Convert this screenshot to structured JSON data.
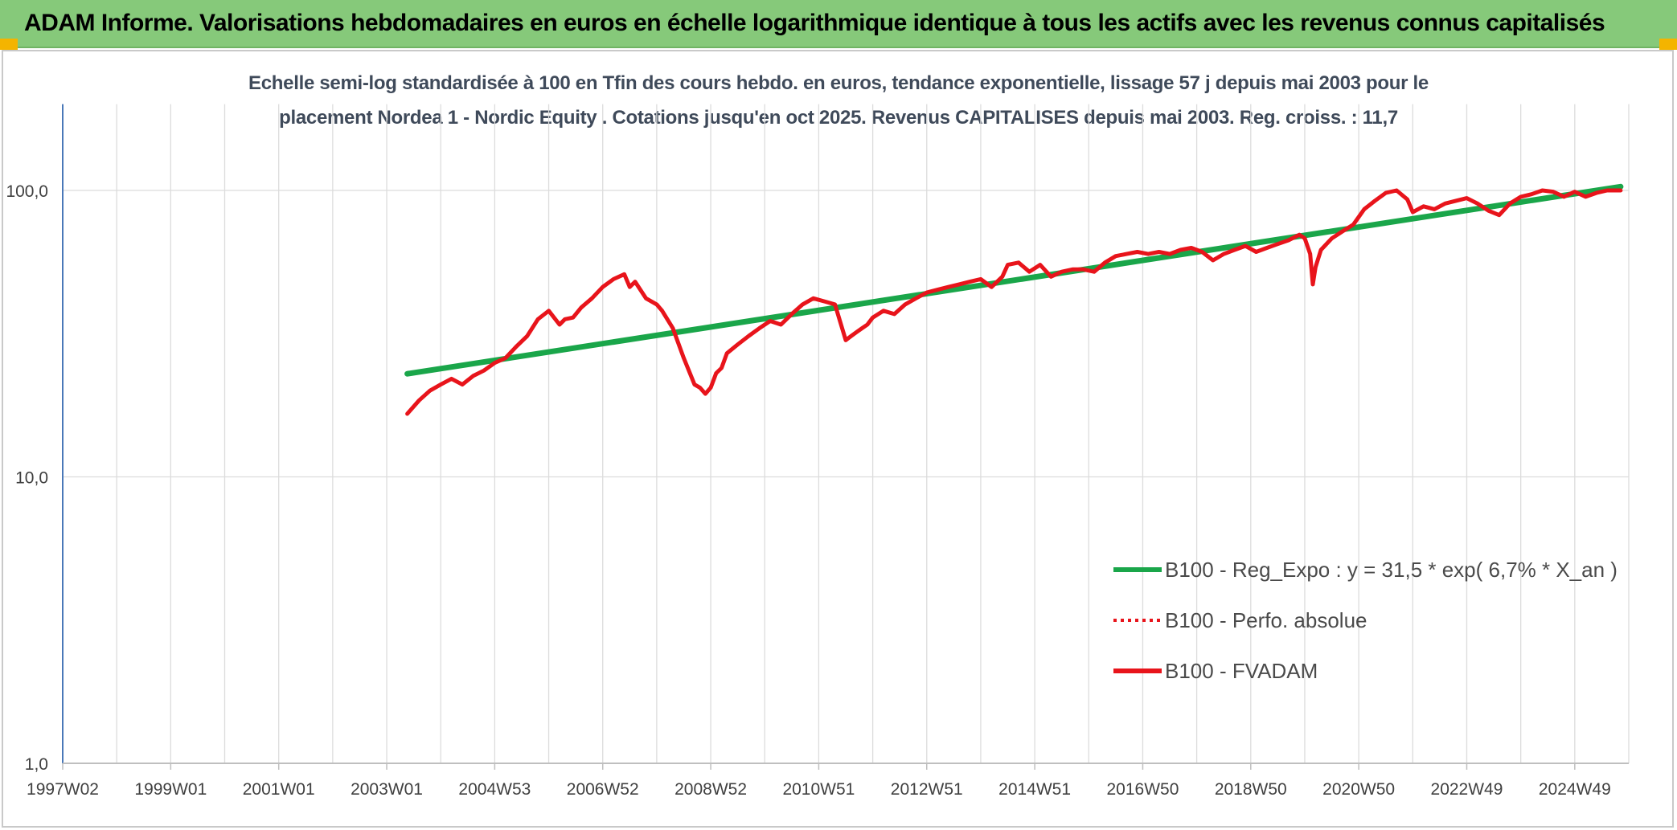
{
  "banner": {
    "title": "ADAM Informe. Valorisations hebdomadaires en euros en échelle logarithmique identique à tous les actifs avec les revenus connus capitalisés"
  },
  "chart_data": {
    "type": "line",
    "subtitle_lines": [
      "Echelle semi-log standardisée à 100 en Tfin des cours hebdo. en euros, tendance exponentielle, lissage 57 j depuis mai 2003 pour le",
      "placement Nordea 1 - Nordic Equity . Cotations jusqu'en oct 2025. Revenus CAPITALISES depuis mai 2003. Reg. croiss. : 11,7"
    ],
    "y_scale": "log",
    "ylim": [
      1,
      200
    ],
    "y_ticks": [
      {
        "value": 1,
        "label": "1,0"
      },
      {
        "value": 10,
        "label": "10,0"
      },
      {
        "value": 100,
        "label": "100,0"
      }
    ],
    "xlim": [
      1997.0,
      2026.0
    ],
    "x_ticks": [
      {
        "value": 1997.0,
        "label": "1997W02"
      },
      {
        "value": 1999.0,
        "label": "1999W01"
      },
      {
        "value": 2001.0,
        "label": "2001W01"
      },
      {
        "value": 2003.0,
        "label": "2003W01"
      },
      {
        "value": 2005.0,
        "label": "2004W53"
      },
      {
        "value": 2007.0,
        "label": "2006W52"
      },
      {
        "value": 2009.0,
        "label": "2008W52"
      },
      {
        "value": 2011.0,
        "label": "2010W51"
      },
      {
        "value": 2013.0,
        "label": "2012W51"
      },
      {
        "value": 2015.0,
        "label": "2014W51"
      },
      {
        "value": 2017.0,
        "label": "2016W50"
      },
      {
        "value": 2019.0,
        "label": "2018W50"
      },
      {
        "value": 2021.0,
        "label": "2020W50"
      },
      {
        "value": 2023.0,
        "label": "2022W49"
      },
      {
        "value": 2025.0,
        "label": "2024W49"
      }
    ],
    "grid": {
      "vertical": true,
      "horizontal": true
    },
    "legend_position": "bottom-right",
    "colors": {
      "trend": "#1aa64a",
      "perf": "#e8141b",
      "fvadam": "#e8141b",
      "grid": "#dcdcdc",
      "axis": "#4a78b8",
      "tick_text": "#404040"
    },
    "series": [
      {
        "name": "B100 - Reg_Expo : y = 31,5 * exp( 6,7% * X_an )",
        "style": "solid-thick",
        "x": [
          2003.38,
          2025.85
        ],
        "y": [
          22.9,
          103.1
        ]
      },
      {
        "name": "B100 - Perfo. absolue",
        "style": "dotted",
        "x": [],
        "y": []
      },
      {
        "name": "B100 - FVADAM",
        "style": "solid",
        "x": [
          2003.38,
          2003.6,
          2003.8,
          2004.0,
          2004.2,
          2004.4,
          2004.6,
          2004.8,
          2005.0,
          2005.2,
          2005.4,
          2005.6,
          2005.8,
          2006.0,
          2006.2,
          2006.3,
          2006.45,
          2006.6,
          2006.8,
          2007.0,
          2007.2,
          2007.4,
          2007.5,
          2007.6,
          2007.8,
          2008.0,
          2008.1,
          2008.3,
          2008.5,
          2008.7,
          2008.8,
          2008.9,
          2009.0,
          2009.1,
          2009.2,
          2009.3,
          2009.5,
          2009.7,
          2009.9,
          2010.1,
          2010.3,
          2010.5,
          2010.7,
          2010.9,
          2011.1,
          2011.3,
          2011.5,
          2011.6,
          2011.7,
          2011.8,
          2011.9,
          2012.0,
          2012.2,
          2012.4,
          2012.6,
          2012.8,
          2013.0,
          2013.2,
          2013.4,
          2013.6,
          2013.8,
          2014.0,
          2014.2,
          2014.4,
          2014.5,
          2014.7,
          2014.9,
          2015.1,
          2015.3,
          2015.5,
          2015.7,
          2015.9,
          2016.1,
          2016.3,
          2016.5,
          2016.7,
          2016.9,
          2017.1,
          2017.3,
          2017.5,
          2017.7,
          2017.9,
          2018.1,
          2018.3,
          2018.5,
          2018.7,
          2018.9,
          2019.1,
          2019.3,
          2019.5,
          2019.7,
          2019.9,
          2020.0,
          2020.1,
          2020.15,
          2020.2,
          2020.3,
          2020.5,
          2020.7,
          2020.9,
          2021.1,
          2021.3,
          2021.5,
          2021.7,
          2021.9,
          2022.0,
          2022.2,
          2022.4,
          2022.6,
          2022.8,
          2023.0,
          2023.2,
          2023.4,
          2023.6,
          2023.8,
          2024.0,
          2024.2,
          2024.4,
          2024.6,
          2024.8,
          2025.0,
          2025.2,
          2025.4,
          2025.6,
          2025.85
        ],
        "y": [
          16.6,
          18.5,
          20.0,
          21.0,
          22.0,
          21.0,
          22.5,
          23.5,
          25.0,
          26.0,
          28.5,
          31.0,
          35.5,
          38.0,
          34.0,
          35.5,
          36.0,
          39.0,
          42.0,
          46.0,
          49.0,
          51.0,
          46.0,
          48.0,
          42.0,
          40.0,
          38.0,
          33.0,
          26.0,
          21.0,
          20.5,
          19.5,
          20.5,
          23.0,
          24.0,
          27.0,
          29.0,
          31.0,
          33.0,
          35.0,
          34.0,
          37.0,
          40.0,
          42.0,
          41.0,
          40.0,
          30.0,
          31.0,
          32.0,
          33.0,
          34.0,
          36.0,
          38.0,
          37.0,
          40.0,
          42.0,
          44.0,
          45.0,
          46.0,
          47.0,
          48.0,
          49.0,
          46.0,
          50.0,
          55.0,
          56.0,
          52.0,
          55.0,
          50.0,
          52.0,
          53.0,
          53.0,
          52.0,
          56.0,
          59.0,
          60.0,
          61.0,
          60.0,
          61.0,
          60.0,
          62.0,
          63.0,
          61.0,
          57.0,
          60.0,
          62.0,
          64.0,
          61.0,
          63.0,
          65.0,
          67.0,
          70.0,
          68.0,
          60.0,
          47.0,
          54.0,
          62.0,
          68.0,
          72.0,
          76.0,
          86.0,
          92.0,
          98.0,
          100.0,
          93.0,
          84.0,
          88.0,
          86.0,
          90.0,
          92.0,
          94.0,
          90.0,
          85.0,
          82.0,
          90.0,
          95.0,
          97.0,
          100.0,
          99.0,
          95.0,
          99.0,
          95.0,
          98.0,
          100.0,
          100.0
        ]
      }
    ]
  }
}
